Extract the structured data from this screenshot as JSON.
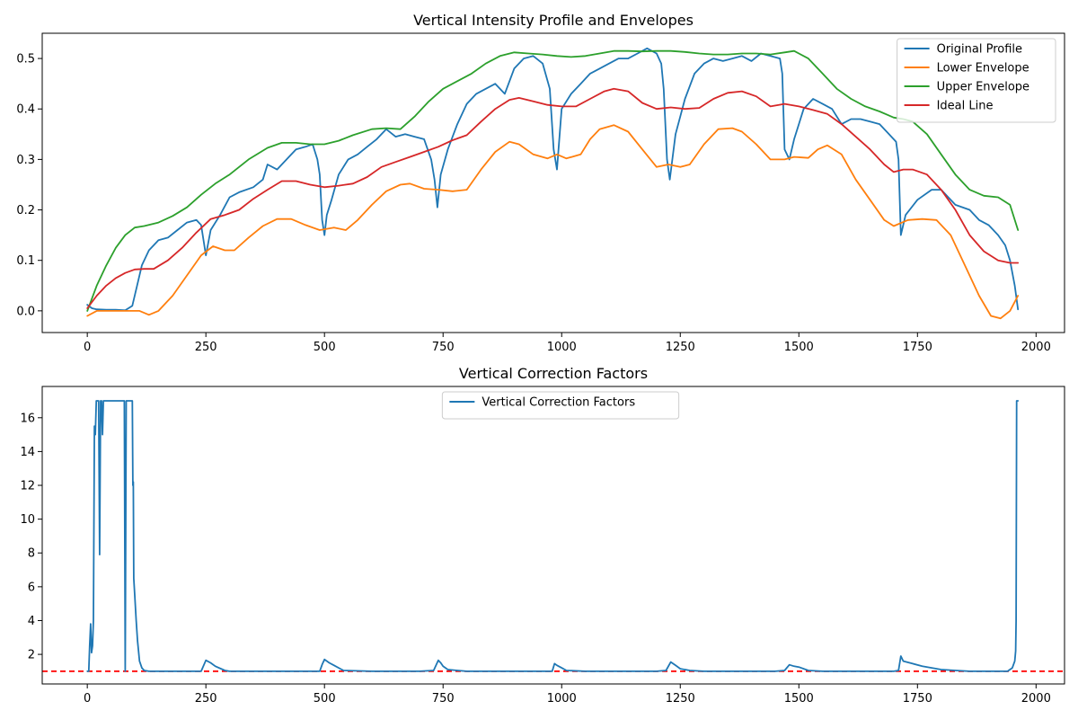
{
  "chart_data": [
    {
      "type": "line",
      "title": "Vertical Intensity Profile and Envelopes",
      "xlabel": "",
      "ylabel": "",
      "xlim": [
        -95,
        2060
      ],
      "ylim": [
        -0.043,
        0.55
      ],
      "xticks": [
        0,
        250,
        500,
        750,
        1000,
        1250,
        1500,
        1750,
        2000
      ],
      "yticks": [
        0.0,
        0.1,
        0.2,
        0.3,
        0.4,
        0.5
      ],
      "ytick_format": 1,
      "grid": false,
      "legend": "top-right",
      "series": [
        {
          "name": "Original Profile",
          "color": "#1f77b4",
          "x": [
            0,
            10,
            20,
            40,
            60,
            80,
            95,
            105,
            115,
            130,
            150,
            170,
            190,
            210,
            230,
            240,
            250,
            260,
            280,
            300,
            320,
            350,
            370,
            380,
            400,
            420,
            440,
            460,
            475,
            485,
            490,
            495,
            500,
            505,
            515,
            530,
            550,
            570,
            590,
            610,
            630,
            650,
            670,
            690,
            710,
            725,
            732,
            738,
            745,
            760,
            780,
            800,
            820,
            840,
            860,
            880,
            900,
            920,
            940,
            960,
            975,
            983,
            990,
            1000,
            1020,
            1040,
            1060,
            1080,
            1100,
            1120,
            1140,
            1160,
            1180,
            1200,
            1210,
            1215,
            1222,
            1228,
            1240,
            1260,
            1280,
            1300,
            1320,
            1340,
            1360,
            1380,
            1400,
            1420,
            1440,
            1460,
            1465,
            1470,
            1480,
            1490,
            1510,
            1530,
            1550,
            1570,
            1590,
            1610,
            1630,
            1650,
            1670,
            1690,
            1705,
            1710,
            1715,
            1725,
            1750,
            1780,
            1800,
            1830,
            1860,
            1880,
            1900,
            1920,
            1935,
            1945,
            1955,
            1962
          ],
          "y": [
            0.012,
            0.005,
            0.003,
            0.002,
            0.002,
            0.001,
            0.01,
            0.05,
            0.09,
            0.12,
            0.14,
            0.145,
            0.16,
            0.175,
            0.18,
            0.17,
            0.11,
            0.16,
            0.19,
            0.225,
            0.235,
            0.245,
            0.26,
            0.29,
            0.28,
            0.3,
            0.32,
            0.325,
            0.33,
            0.3,
            0.27,
            0.18,
            0.15,
            0.19,
            0.22,
            0.27,
            0.3,
            0.31,
            0.325,
            0.34,
            0.36,
            0.345,
            0.35,
            0.345,
            0.34,
            0.3,
            0.26,
            0.205,
            0.27,
            0.32,
            0.37,
            0.41,
            0.43,
            0.44,
            0.45,
            0.43,
            0.48,
            0.5,
            0.505,
            0.49,
            0.44,
            0.32,
            0.28,
            0.4,
            0.43,
            0.45,
            0.47,
            0.48,
            0.49,
            0.5,
            0.5,
            0.51,
            0.52,
            0.51,
            0.49,
            0.44,
            0.3,
            0.26,
            0.35,
            0.42,
            0.47,
            0.49,
            0.5,
            0.495,
            0.5,
            0.505,
            0.495,
            0.51,
            0.505,
            0.5,
            0.47,
            0.32,
            0.3,
            0.34,
            0.4,
            0.42,
            0.41,
            0.4,
            0.37,
            0.38,
            0.38,
            0.375,
            0.37,
            0.35,
            0.335,
            0.3,
            0.15,
            0.19,
            0.22,
            0.24,
            0.24,
            0.21,
            0.2,
            0.18,
            0.17,
            0.15,
            0.13,
            0.1,
            0.05,
            0.003
          ]
        },
        {
          "name": "Lower Envelope",
          "color": "#ff7f0e",
          "x": [
            0,
            20,
            50,
            80,
            110,
            130,
            150,
            180,
            210,
            240,
            265,
            290,
            310,
            340,
            370,
            400,
            430,
            460,
            490,
            520,
            545,
            570,
            600,
            630,
            660,
            680,
            710,
            740,
            770,
            800,
            830,
            860,
            890,
            910,
            940,
            970,
            990,
            1010,
            1040,
            1060,
            1080,
            1110,
            1140,
            1170,
            1200,
            1225,
            1250,
            1270,
            1300,
            1330,
            1360,
            1380,
            1410,
            1440,
            1470,
            1490,
            1520,
            1540,
            1560,
            1590,
            1620,
            1650,
            1680,
            1700,
            1730,
            1760,
            1790,
            1820,
            1850,
            1880,
            1905,
            1925,
            1945,
            1962
          ],
          "y": [
            -0.01,
            0.0,
            0.0,
            0.0,
            0.0,
            -0.008,
            0.0,
            0.03,
            0.07,
            0.11,
            0.128,
            0.12,
            0.12,
            0.145,
            0.168,
            0.182,
            0.182,
            0.17,
            0.16,
            0.165,
            0.16,
            0.18,
            0.21,
            0.237,
            0.25,
            0.252,
            0.242,
            0.24,
            0.237,
            0.24,
            0.28,
            0.315,
            0.335,
            0.33,
            0.31,
            0.302,
            0.31,
            0.302,
            0.31,
            0.34,
            0.36,
            0.368,
            0.355,
            0.32,
            0.285,
            0.29,
            0.285,
            0.29,
            0.33,
            0.36,
            0.362,
            0.355,
            0.33,
            0.3,
            0.3,
            0.305,
            0.303,
            0.32,
            0.328,
            0.31,
            0.26,
            0.22,
            0.18,
            0.168,
            0.18,
            0.182,
            0.18,
            0.15,
            0.09,
            0.03,
            -0.01,
            -0.015,
            0.0,
            0.03
          ]
        },
        {
          "name": "Upper Envelope",
          "color": "#2ca02c",
          "x": [
            0,
            20,
            40,
            60,
            80,
            100,
            120,
            150,
            180,
            210,
            240,
            270,
            300,
            340,
            380,
            410,
            440,
            470,
            500,
            530,
            560,
            600,
            630,
            660,
            690,
            720,
            750,
            780,
            810,
            840,
            870,
            900,
            930,
            960,
            990,
            1020,
            1050,
            1080,
            1110,
            1140,
            1170,
            1200,
            1230,
            1260,
            1290,
            1320,
            1350,
            1380,
            1410,
            1440,
            1470,
            1490,
            1520,
            1550,
            1580,
            1610,
            1640,
            1670,
            1700,
            1720,
            1740,
            1770,
            1800,
            1830,
            1860,
            1890,
            1920,
            1945,
            1962
          ],
          "y": [
            0.0,
            0.05,
            0.09,
            0.125,
            0.15,
            0.165,
            0.168,
            0.175,
            0.188,
            0.205,
            0.23,
            0.252,
            0.27,
            0.3,
            0.323,
            0.333,
            0.333,
            0.33,
            0.33,
            0.337,
            0.348,
            0.36,
            0.362,
            0.36,
            0.385,
            0.415,
            0.44,
            0.455,
            0.47,
            0.49,
            0.505,
            0.512,
            0.51,
            0.508,
            0.505,
            0.503,
            0.505,
            0.51,
            0.515,
            0.515,
            0.514,
            0.515,
            0.515,
            0.513,
            0.51,
            0.508,
            0.508,
            0.51,
            0.51,
            0.508,
            0.512,
            0.515,
            0.5,
            0.47,
            0.44,
            0.42,
            0.405,
            0.395,
            0.383,
            0.38,
            0.375,
            0.35,
            0.31,
            0.27,
            0.24,
            0.228,
            0.225,
            0.21,
            0.16
          ]
        },
        {
          "name": "Ideal Line",
          "color": "#d62728",
          "x": [
            0,
            20,
            40,
            60,
            80,
            100,
            120,
            140,
            170,
            200,
            230,
            260,
            290,
            320,
            350,
            380,
            410,
            440,
            470,
            500,
            530,
            560,
            590,
            620,
            650,
            680,
            710,
            740,
            770,
            800,
            830,
            860,
            890,
            910,
            940,
            970,
            1000,
            1030,
            1060,
            1090,
            1110,
            1140,
            1170,
            1200,
            1230,
            1260,
            1290,
            1320,
            1350,
            1380,
            1410,
            1440,
            1470,
            1500,
            1530,
            1560,
            1590,
            1620,
            1650,
            1680,
            1700,
            1720,
            1740,
            1770,
            1800,
            1830,
            1860,
            1890,
            1920,
            1945,
            1962
          ],
          "y": [
            0.005,
            0.03,
            0.05,
            0.065,
            0.075,
            0.082,
            0.083,
            0.083,
            0.1,
            0.125,
            0.155,
            0.182,
            0.19,
            0.2,
            0.222,
            0.24,
            0.257,
            0.257,
            0.25,
            0.245,
            0.248,
            0.252,
            0.265,
            0.285,
            0.295,
            0.305,
            0.315,
            0.325,
            0.338,
            0.348,
            0.375,
            0.4,
            0.418,
            0.422,
            0.415,
            0.408,
            0.405,
            0.405,
            0.42,
            0.435,
            0.44,
            0.435,
            0.412,
            0.4,
            0.403,
            0.4,
            0.402,
            0.42,
            0.432,
            0.435,
            0.425,
            0.405,
            0.41,
            0.405,
            0.398,
            0.39,
            0.37,
            0.345,
            0.32,
            0.29,
            0.275,
            0.28,
            0.28,
            0.27,
            0.24,
            0.2,
            0.15,
            0.118,
            0.1,
            0.095,
            0.095
          ]
        }
      ]
    },
    {
      "type": "line",
      "title": "Vertical Correction Factors",
      "xlabel": "",
      "ylabel": "",
      "xlim": [
        -95,
        2060
      ],
      "ylim": [
        0.25,
        17.85
      ],
      "xticks": [
        0,
        250,
        500,
        750,
        1000,
        1250,
        1500,
        1750,
        2000
      ],
      "yticks": [
        2,
        4,
        6,
        8,
        10,
        12,
        14,
        16
      ],
      "ytick_format": 0,
      "grid": false,
      "legend": "top-center",
      "reference_line": {
        "y": 1.0,
        "color": "#ff0000",
        "style": "dashed"
      },
      "series": [
        {
          "name": "Vertical Correction Factors",
          "color": "#1f77b4",
          "x": [
            0,
            3,
            5,
            7,
            9,
            11,
            13,
            15,
            17,
            19,
            20,
            22,
            24,
            26,
            28,
            30,
            32,
            34,
            36,
            38,
            40,
            45,
            50,
            55,
            60,
            65,
            70,
            75,
            78,
            80,
            82,
            84,
            86,
            88,
            90,
            93,
            95,
            96,
            97,
            98,
            100,
            103,
            106,
            110,
            115,
            120,
            130,
            150,
            200,
            240,
            250,
            260,
            270,
            290,
            300,
            350,
            400,
            450,
            490,
            495,
            500,
            510,
            520,
            540,
            600,
            650,
            700,
            730,
            740,
            745,
            750,
            760,
            780,
            800,
            850,
            900,
            950,
            980,
            985,
            990,
            1000,
            1010,
            1050,
            1100,
            1150,
            1200,
            1220,
            1230,
            1240,
            1250,
            1270,
            1300,
            1350,
            1400,
            1450,
            1470,
            1480,
            1490,
            1500,
            1520,
            1550,
            1600,
            1650,
            1700,
            1710,
            1715,
            1720,
            1740,
            1760,
            1780,
            1800,
            1830,
            1860,
            1900,
            1940,
            1950,
            1955,
            1957,
            1958,
            1959,
            1960,
            1962
          ],
          "y": [
            1.0,
            1.0,
            2.5,
            3.8,
            2.1,
            2.5,
            4.0,
            15.5,
            15.0,
            17.0,
            17.0,
            17.0,
            17.0,
            7.9,
            17.0,
            17.0,
            15.0,
            17.0,
            17.0,
            17.0,
            17.0,
            17.0,
            17.0,
            17.0,
            17.0,
            17.0,
            17.0,
            17.0,
            17.0,
            1.0,
            17.0,
            17.0,
            17.0,
            17.0,
            17.0,
            17.0,
            17.0,
            12.0,
            12.2,
            6.5,
            5.5,
            4.0,
            2.8,
            1.6,
            1.2,
            1.05,
            1.0,
            1.0,
            1.0,
            1.0,
            1.65,
            1.5,
            1.3,
            1.05,
            1.0,
            1.0,
            1.0,
            1.0,
            1.0,
            1.4,
            1.7,
            1.5,
            1.35,
            1.05,
            1.0,
            1.0,
            1.0,
            1.05,
            1.65,
            1.5,
            1.3,
            1.1,
            1.05,
            1.0,
            1.0,
            1.0,
            1.0,
            1.0,
            1.45,
            1.35,
            1.2,
            1.05,
            1.0,
            1.0,
            1.0,
            1.0,
            1.05,
            1.55,
            1.35,
            1.15,
            1.05,
            1.0,
            1.0,
            1.0,
            1.0,
            1.05,
            1.38,
            1.3,
            1.25,
            1.05,
            1.0,
            1.0,
            1.0,
            1.0,
            1.05,
            1.9,
            1.6,
            1.45,
            1.3,
            1.2,
            1.1,
            1.05,
            1.0,
            1.0,
            1.0,
            1.2,
            1.6,
            2.2,
            4.0,
            17.0,
            17.0,
            17.0
          ]
        }
      ]
    }
  ]
}
